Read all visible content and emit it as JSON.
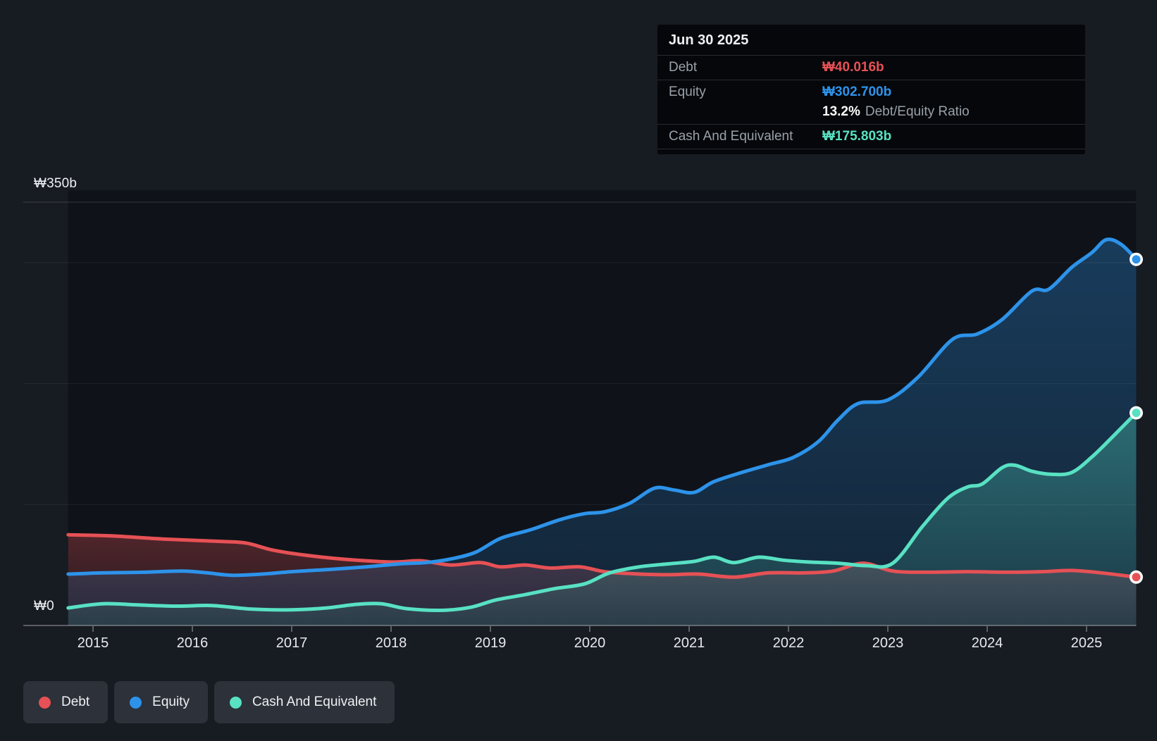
{
  "page": {
    "background": "#171b22"
  },
  "colors": {
    "debt": "#e65155",
    "equity": "#2d93ea",
    "cash": "#58e1c3",
    "text_primary": "#eef1f4",
    "text_muted": "#9aa1a9",
    "gridline": "rgba(255,255,255,0.07)",
    "axis_line": "rgba(255,255,255,0.30)",
    "tooltip_bg": "#05070a",
    "legend_pill_bg": "#2c313a"
  },
  "tooltip": {
    "date": "Jun 30 2025",
    "debt_label": "Debt",
    "debt_value": "₩40.016b",
    "equity_label": "Equity",
    "equity_value": "₩302.700b",
    "ratio_value": "13.2%",
    "ratio_label": "Debt/Equity Ratio",
    "cash_label": "Cash And Equivalent",
    "cash_value": "₩175.803b"
  },
  "y_axis": {
    "top_label": "₩350b",
    "zero_label": "₩0"
  },
  "legend": {
    "items": [
      {
        "key": "debt",
        "label": "Debt"
      },
      {
        "key": "equity",
        "label": "Equity"
      },
      {
        "key": "cash",
        "label": "Cash And Equivalent"
      }
    ]
  },
  "chart_data": {
    "type": "area",
    "title": "Debt to Equity History and Analysis",
    "unit": "₩ billions (KRW)",
    "x_min": 2014.75,
    "x_max": 2025.5,
    "y_min": 0,
    "y_max": 350,
    "x_ticks": [
      2015,
      2016,
      2017,
      2018,
      2019,
      2020,
      2021,
      2022,
      2023,
      2024,
      2025
    ],
    "gridline_values": [
      100,
      200,
      300
    ],
    "top_line_value": 350,
    "legend_position": "bottom-left",
    "series": [
      {
        "name": "Debt",
        "color": "#e65155",
        "fill_top": 0.3,
        "fill_bottom": 0.1,
        "end_value": 40.016,
        "points": [
          [
            2014.75,
            75
          ],
          [
            2015.2,
            74
          ],
          [
            2015.7,
            71.5
          ],
          [
            2016.3,
            69.5
          ],
          [
            2016.55,
            68
          ],
          [
            2016.8,
            62.5
          ],
          [
            2017.1,
            58.5
          ],
          [
            2017.5,
            55
          ],
          [
            2018.0,
            52.5
          ],
          [
            2018.3,
            53.5
          ],
          [
            2018.6,
            50
          ],
          [
            2018.9,
            52
          ],
          [
            2019.1,
            48.5
          ],
          [
            2019.35,
            50
          ],
          [
            2019.6,
            47.5
          ],
          [
            2019.9,
            48.5
          ],
          [
            2020.15,
            44.5
          ],
          [
            2020.5,
            42.5
          ],
          [
            2020.8,
            42
          ],
          [
            2021.1,
            42.5
          ],
          [
            2021.45,
            40
          ],
          [
            2021.8,
            43.5
          ],
          [
            2022.15,
            43.5
          ],
          [
            2022.45,
            45
          ],
          [
            2022.75,
            51.5
          ],
          [
            2023.05,
            45
          ],
          [
            2023.4,
            44
          ],
          [
            2023.8,
            44.5
          ],
          [
            2024.2,
            44
          ],
          [
            2024.55,
            44.5
          ],
          [
            2024.85,
            45.5
          ],
          [
            2025.15,
            43.5
          ],
          [
            2025.5,
            40.016
          ]
        ]
      },
      {
        "name": "Equity",
        "color": "#2d93ea",
        "fill_top": 0.32,
        "fill_bottom": 0.14,
        "end_value": 302.7,
        "points": [
          [
            2014.75,
            42.5
          ],
          [
            2015.1,
            43.5
          ],
          [
            2015.5,
            44
          ],
          [
            2015.9,
            45
          ],
          [
            2016.15,
            43.5
          ],
          [
            2016.4,
            41.5
          ],
          [
            2016.7,
            42.5
          ],
          [
            2017.0,
            44.5
          ],
          [
            2017.4,
            46.5
          ],
          [
            2017.75,
            48.5
          ],
          [
            2018.1,
            51
          ],
          [
            2018.35,
            52
          ],
          [
            2018.6,
            55
          ],
          [
            2018.85,
            60.5
          ],
          [
            2019.1,
            72
          ],
          [
            2019.4,
            79
          ],
          [
            2019.7,
            87.5
          ],
          [
            2019.95,
            92.5
          ],
          [
            2020.15,
            94
          ],
          [
            2020.4,
            101
          ],
          [
            2020.65,
            113.5
          ],
          [
            2020.85,
            112
          ],
          [
            2021.05,
            110
          ],
          [
            2021.25,
            119
          ],
          [
            2021.55,
            127
          ],
          [
            2021.8,
            133
          ],
          [
            2022.05,
            139
          ],
          [
            2022.3,
            152
          ],
          [
            2022.5,
            170
          ],
          [
            2022.7,
            183.5
          ],
          [
            2023.0,
            186.5
          ],
          [
            2023.3,
            205
          ],
          [
            2023.65,
            236.5
          ],
          [
            2023.9,
            241
          ],
          [
            2024.15,
            253
          ],
          [
            2024.45,
            276.5
          ],
          [
            2024.62,
            278
          ],
          [
            2024.85,
            296
          ],
          [
            2025.05,
            308
          ],
          [
            2025.2,
            319
          ],
          [
            2025.35,
            315
          ],
          [
            2025.5,
            302.7
          ]
        ]
      },
      {
        "name": "Cash And Equivalent",
        "color": "#58e1c3",
        "fill_top": 0.33,
        "fill_bottom": 0.1,
        "end_value": 175.803,
        "points": [
          [
            2014.75,
            14.5
          ],
          [
            2015.1,
            18
          ],
          [
            2015.45,
            17
          ],
          [
            2015.85,
            16
          ],
          [
            2016.2,
            16.5
          ],
          [
            2016.6,
            13.5
          ],
          [
            2017.0,
            13
          ],
          [
            2017.35,
            14.5
          ],
          [
            2017.65,
            17.5
          ],
          [
            2017.9,
            18
          ],
          [
            2018.15,
            14
          ],
          [
            2018.5,
            12.5
          ],
          [
            2018.8,
            15
          ],
          [
            2019.05,
            21
          ],
          [
            2019.35,
            25.5
          ],
          [
            2019.65,
            30.5
          ],
          [
            2019.95,
            34.5
          ],
          [
            2020.2,
            43.5
          ],
          [
            2020.5,
            48.5
          ],
          [
            2020.8,
            51
          ],
          [
            2021.05,
            53
          ],
          [
            2021.25,
            56.5
          ],
          [
            2021.45,
            52
          ],
          [
            2021.7,
            56.5
          ],
          [
            2021.95,
            54
          ],
          [
            2022.2,
            52.5
          ],
          [
            2022.5,
            51.5
          ],
          [
            2022.78,
            49.5
          ],
          [
            2023.05,
            51.5
          ],
          [
            2023.35,
            82
          ],
          [
            2023.6,
            105
          ],
          [
            2023.8,
            114.5
          ],
          [
            2023.95,
            117
          ],
          [
            2024.15,
            130.5
          ],
          [
            2024.28,
            132.5
          ],
          [
            2024.45,
            127.5
          ],
          [
            2024.65,
            125
          ],
          [
            2024.85,
            126.5
          ],
          [
            2025.05,
            139
          ],
          [
            2025.25,
            155
          ],
          [
            2025.5,
            175.803
          ]
        ]
      }
    ]
  }
}
